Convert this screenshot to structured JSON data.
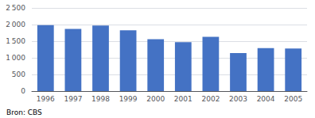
{
  "chart_data": {
    "type": "bar",
    "categories": [
      "1996",
      "1997",
      "1998",
      "1999",
      "2000",
      "2001",
      "2002",
      "2003",
      "2004",
      "2005"
    ],
    "values": [
      1980,
      1870,
      1970,
      1830,
      1560,
      1470,
      1630,
      1140,
      1290,
      1280
    ],
    "color": "#4472C4",
    "ylim": [
      0,
      2500
    ],
    "yticks": [
      0,
      500,
      {
        "value": 1000,
        "label": "1 000"
      },
      {
        "value": 1500,
        "label": "1 500"
      },
      {
        "value": 2000,
        "label": "2 000"
      },
      {
        "value": 2500,
        "label": "2 500"
      }
    ],
    "grid": true,
    "annotation": "Bron: CBS"
  }
}
